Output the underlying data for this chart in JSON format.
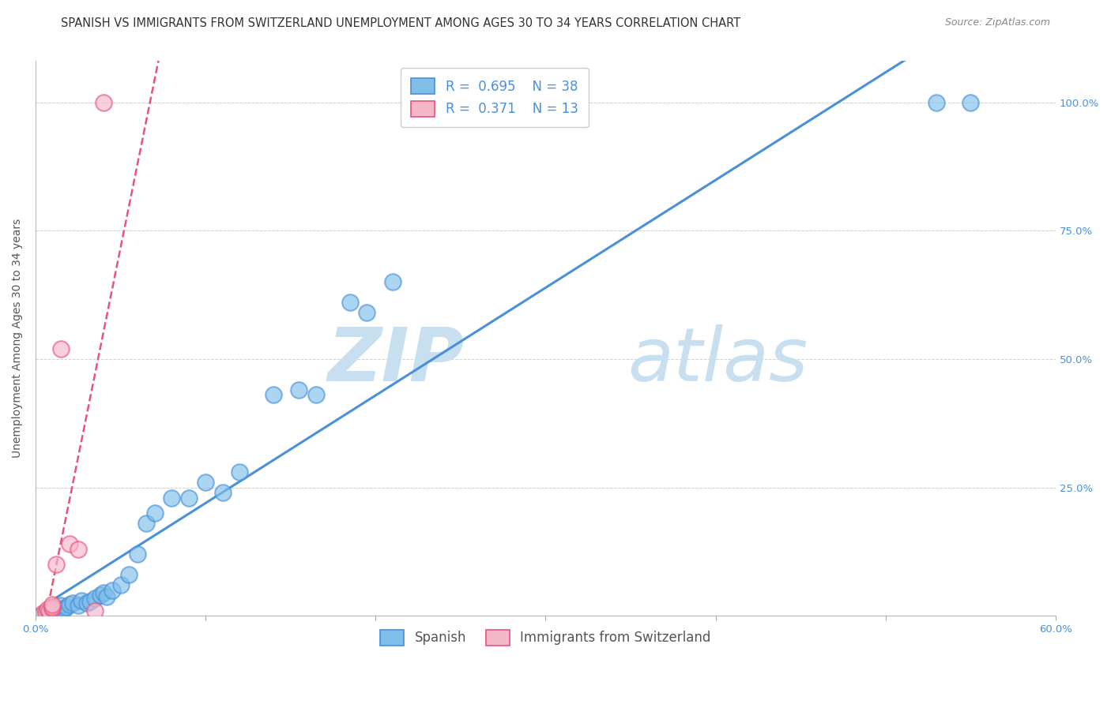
{
  "title": "SPANISH VS IMMIGRANTS FROM SWITZERLAND UNEMPLOYMENT AMONG AGES 30 TO 34 YEARS CORRELATION CHART",
  "source": "Source: ZipAtlas.com",
  "xlabel": "",
  "ylabel": "Unemployment Among Ages 30 to 34 years",
  "xlim": [
    0.0,
    0.6
  ],
  "ylim": [
    0.0,
    1.08
  ],
  "xticks": [
    0.0,
    0.1,
    0.2,
    0.3,
    0.4,
    0.5,
    0.6
  ],
  "xticklabels": [
    "0.0%",
    "",
    "",
    "",
    "",
    "",
    "60.0%"
  ],
  "ytick_positions": [
    0.0,
    0.25,
    0.5,
    0.75,
    1.0
  ],
  "yticklabels": [
    "",
    "25.0%",
    "50.0%",
    "75.0%",
    "100.0%"
  ],
  "blue_color": "#7fbfea",
  "pink_color": "#f5b8cb",
  "line_blue": "#4a90d9",
  "line_pink": "#e8537a",
  "legend_R_blue": "0.695",
  "legend_N_blue": "38",
  "legend_R_pink": "0.371",
  "legend_N_pink": "13",
  "watermark_zip": "ZIP",
  "watermark_atlas": "atlas",
  "watermark_color": "#c8dff0",
  "blue_x": [
    0.005,
    0.008,
    0.01,
    0.012,
    0.013,
    0.015,
    0.015,
    0.017,
    0.018,
    0.02,
    0.022,
    0.025,
    0.027,
    0.03,
    0.032,
    0.035,
    0.038,
    0.04,
    0.042,
    0.045,
    0.05,
    0.055,
    0.06,
    0.065,
    0.07,
    0.08,
    0.09,
    0.1,
    0.11,
    0.12,
    0.14,
    0.155,
    0.165,
    0.185,
    0.195,
    0.21,
    0.53,
    0.55
  ],
  "blue_y": [
    0.005,
    0.008,
    0.01,
    0.013,
    0.01,
    0.012,
    0.02,
    0.015,
    0.018,
    0.022,
    0.025,
    0.02,
    0.03,
    0.025,
    0.028,
    0.035,
    0.04,
    0.045,
    0.038,
    0.05,
    0.06,
    0.08,
    0.12,
    0.18,
    0.2,
    0.23,
    0.23,
    0.26,
    0.24,
    0.28,
    0.43,
    0.44,
    0.43,
    0.61,
    0.59,
    0.65,
    1.0,
    1.0
  ],
  "pink_x": [
    0.004,
    0.006,
    0.007,
    0.008,
    0.01,
    0.01,
    0.01,
    0.012,
    0.015,
    0.02,
    0.025,
    0.035,
    0.04
  ],
  "pink_y": [
    0.005,
    0.008,
    0.012,
    0.01,
    0.015,
    0.018,
    0.022,
    0.1,
    0.52,
    0.14,
    0.13,
    0.01,
    1.0
  ],
  "title_fontsize": 10.5,
  "source_fontsize": 9,
  "axis_label_fontsize": 10,
  "tick_fontsize": 9.5,
  "legend_fontsize": 12
}
